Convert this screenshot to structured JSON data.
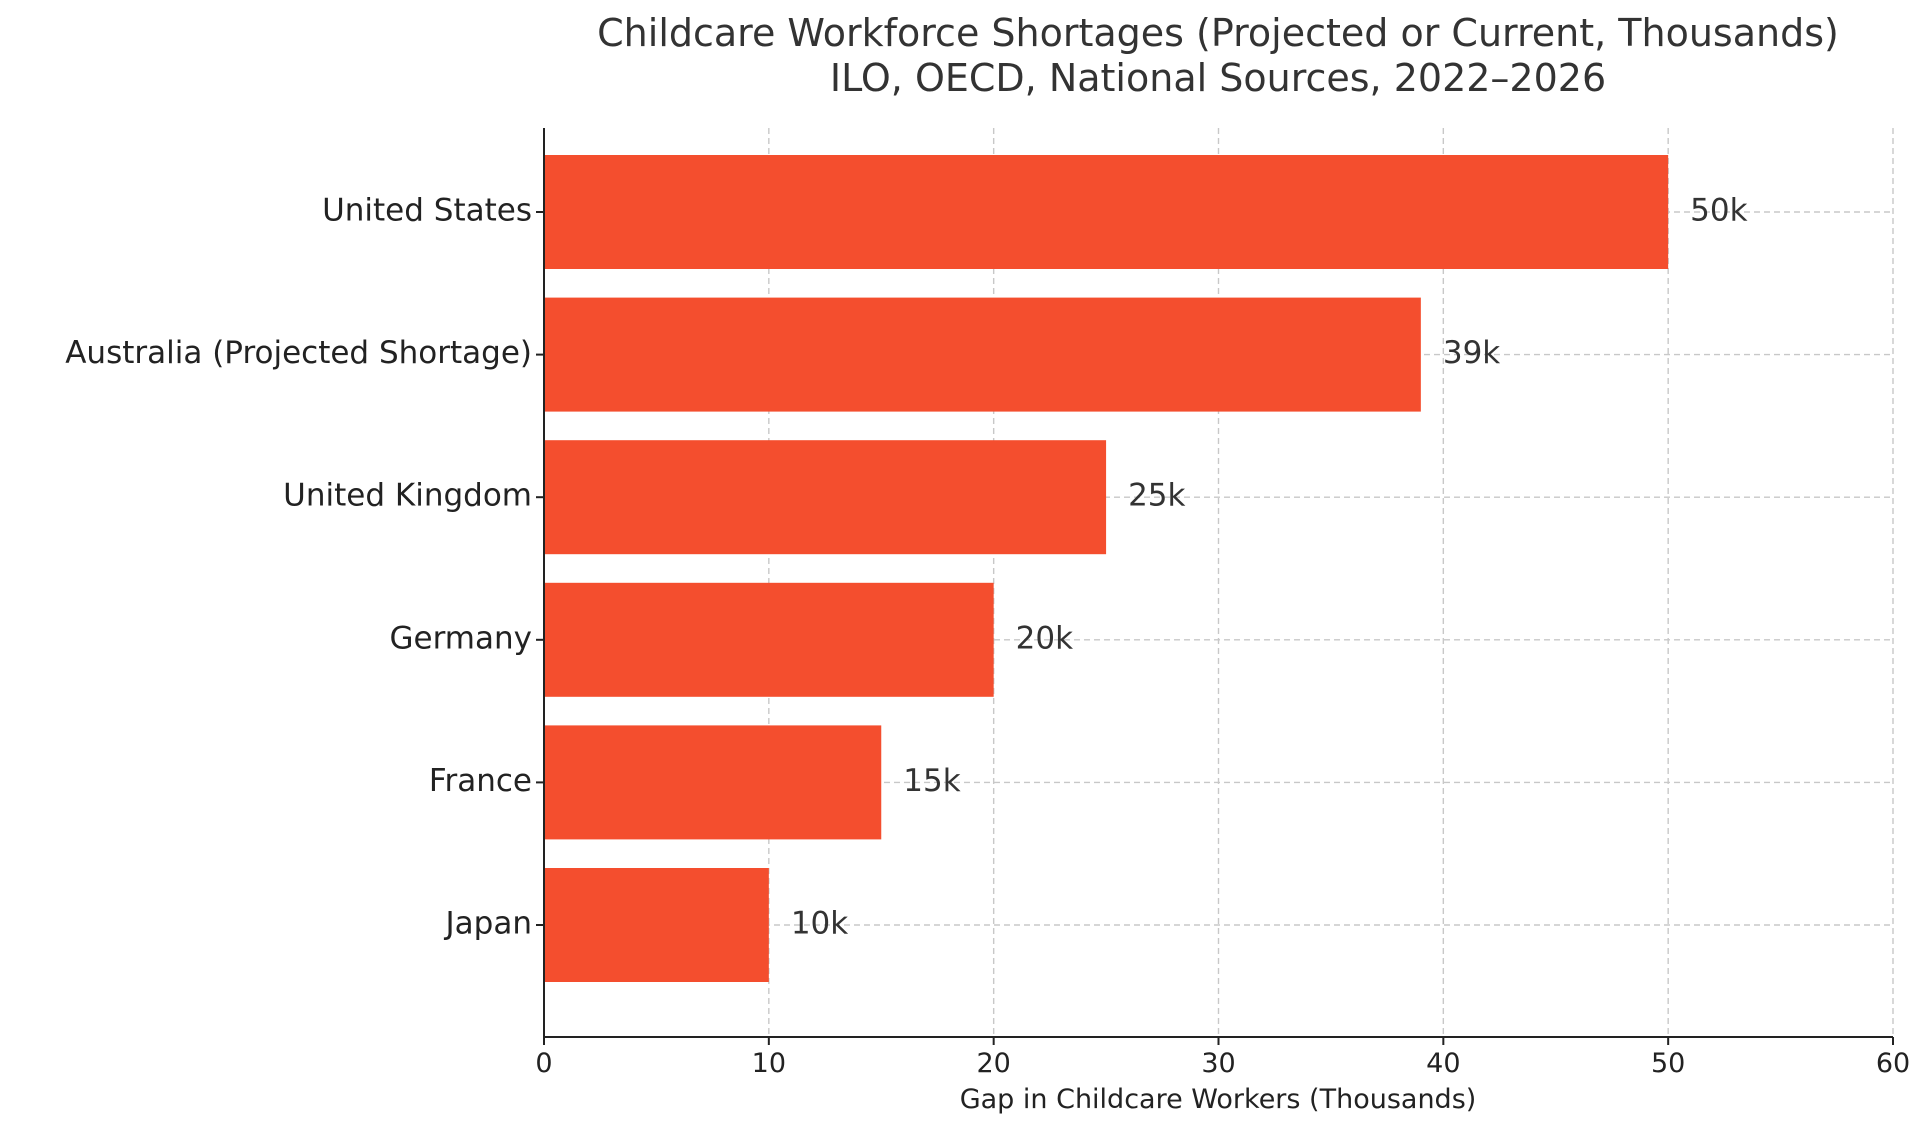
{
  "chart_data": {
    "type": "bar",
    "orientation": "horizontal",
    "title": "Childcare Workforce Shortages (Projected or Current, Thousands)",
    "subtitle": "ILO, OECD, National Sources, 2022–2026",
    "xlabel": "Gap in Childcare Workers (Thousands)",
    "ylabel": "",
    "categories": [
      "United States",
      "Australia (Projected Shortage)",
      "United Kingdom",
      "Germany",
      "France",
      "Japan"
    ],
    "values": [
      50,
      39,
      25,
      20,
      15,
      10
    ],
    "data_labels": [
      "50k",
      "39k",
      "25k",
      "20k",
      "15k",
      "10k"
    ],
    "xlim": [
      0,
      60
    ],
    "xticks": [
      0,
      10,
      20,
      30,
      40,
      50,
      60
    ],
    "xtick_labels": [
      "0",
      "10",
      "20",
      "30",
      "40",
      "50",
      "60"
    ],
    "grid": true,
    "grid_style": "dashed",
    "bar_color": "#f44e2e",
    "grid_color": "#c8c8c8",
    "axis_color": "#222222"
  }
}
